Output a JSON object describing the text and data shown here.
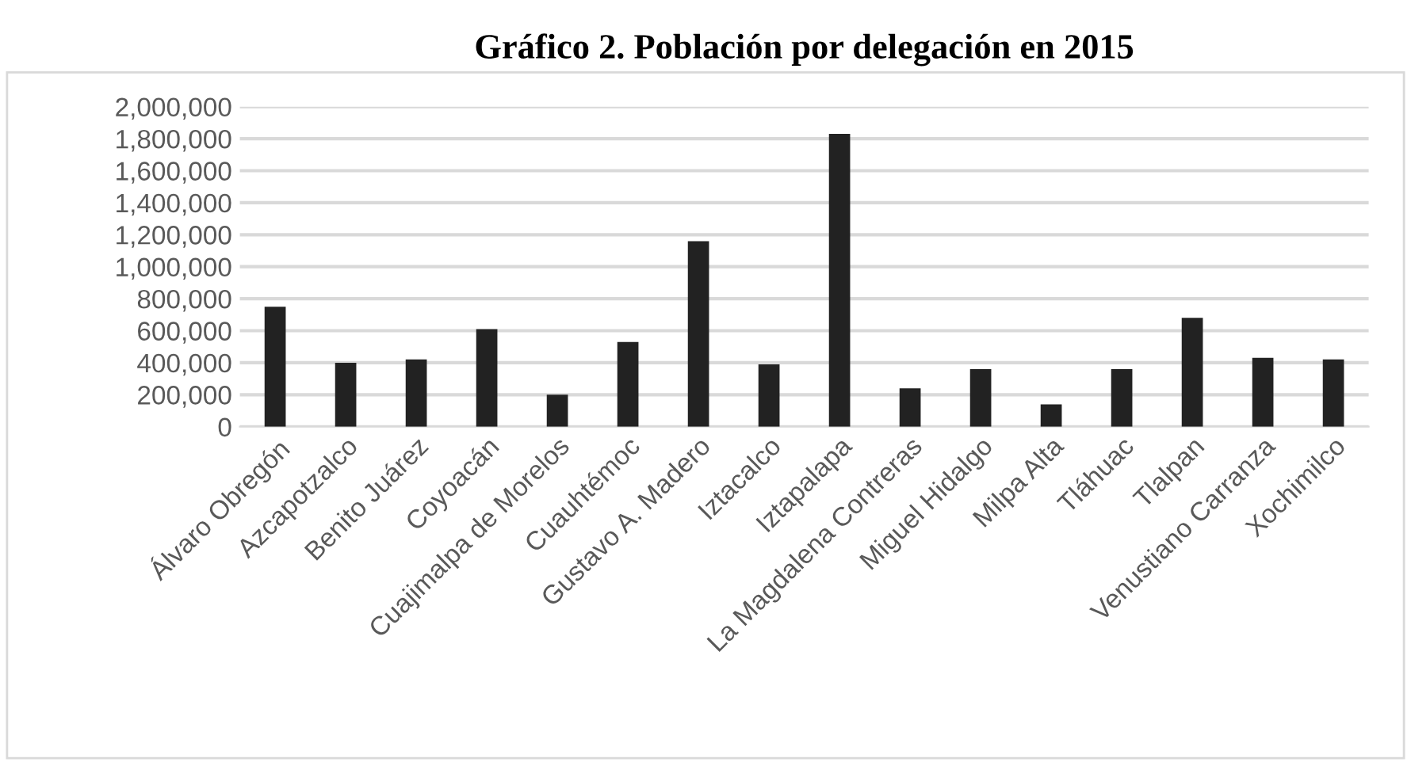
{
  "chart_data": {
    "type": "bar",
    "title": "Gráfico 2. Población por delegación en 2015",
    "categories": [
      "Álvaro Obregón",
      "Azcapotzalco",
      "Benito Juárez",
      "Coyoacán",
      "Cuajimalpa de Morelos",
      "Cuauhtémoc",
      "Gustavo A. Madero",
      "Iztacalco",
      "Iztapalapa",
      "La Magdalena Contreras",
      "Miguel Hidalgo",
      "Milpa Alta",
      "Tláhuac",
      "Tlalpan",
      "Venustiano Carranza",
      "Xochimilco"
    ],
    "values": [
      750000,
      400000,
      420000,
      610000,
      200000,
      530000,
      1160000,
      390000,
      1830000,
      240000,
      360000,
      140000,
      360000,
      680000,
      430000,
      420000
    ],
    "color": "#222222",
    "ylim": [
      0,
      2000000
    ],
    "yticks": [
      {
        "value": 0,
        "label": "0"
      },
      {
        "value": 200000,
        "label": "200,000"
      },
      {
        "value": 400000,
        "label": "400,000"
      },
      {
        "value": 600000,
        "label": "600,000"
      },
      {
        "value": 800000,
        "label": "800,000"
      },
      {
        "value": 1000000,
        "label": "1,000,000"
      },
      {
        "value": 1200000,
        "label": "1,200,000"
      },
      {
        "value": 1400000,
        "label": "1,400,000"
      },
      {
        "value": 1600000,
        "label": "1,600,000"
      },
      {
        "value": 1800000,
        "label": "1,800,000"
      },
      {
        "value": 2000000,
        "label": "2,000,000"
      }
    ],
    "grid": "y",
    "legend": false
  }
}
